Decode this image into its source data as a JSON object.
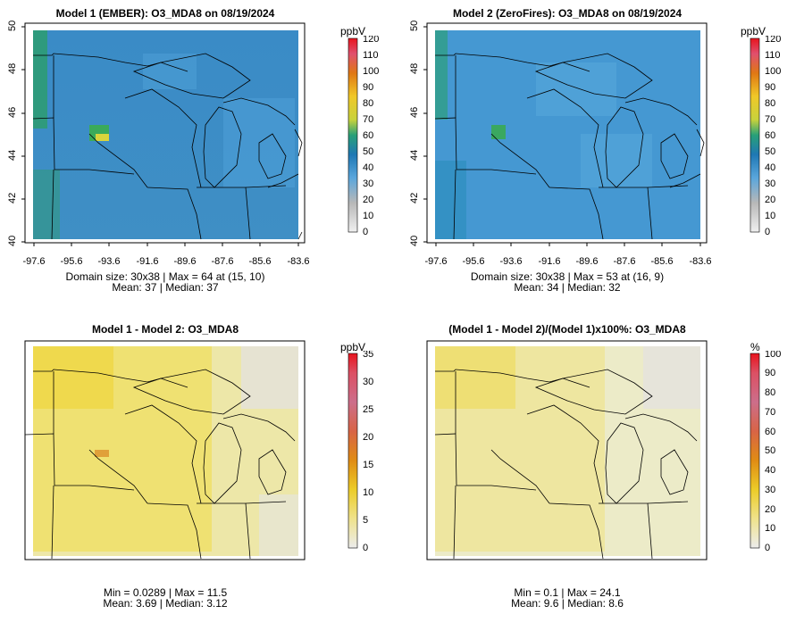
{
  "panels": [
    {
      "id": "p1",
      "title": "Model 1 (EMBER): O3_MDA8 on 08/19/2024",
      "unit": "ppbV",
      "legend_ticks": [
        "120",
        "110",
        "100",
        "90",
        "80",
        "70",
        "60",
        "50",
        "40",
        "30",
        "20",
        "10",
        "0"
      ],
      "stats_line1": "Domain size: 30x38 | Max = 64 at (15, 10)",
      "stats_line2": "Mean: 37 |  Median: 37",
      "x_ticks": [
        "-97.6",
        "-95.6",
        "-93.6",
        "-91.6",
        "-89.6",
        "-87.6",
        "-85.6",
        "-83.6"
      ],
      "y_ticks": [
        "40",
        "42",
        "44",
        "46",
        "48",
        "50"
      ]
    },
    {
      "id": "p2",
      "title": "Model 2 (ZeroFires): O3_MDA8 on 08/19/2024",
      "unit": "ppbV",
      "legend_ticks": [
        "120",
        "110",
        "100",
        "90",
        "80",
        "70",
        "60",
        "50",
        "40",
        "30",
        "20",
        "10",
        "0"
      ],
      "stats_line1": "Domain size: 30x38 | Max = 53 at (16, 9)",
      "stats_line2": "Mean: 34 |  Median: 32",
      "x_ticks": [
        "-97.6",
        "-95.6",
        "-93.6",
        "-91.6",
        "-89.6",
        "-87.6",
        "-85.6",
        "-83.6"
      ],
      "y_ticks": [
        "40",
        "42",
        "44",
        "46",
        "48",
        "50"
      ]
    },
    {
      "id": "p3",
      "title": "Model 1 - Model 2: O3_MDA8",
      "unit": "ppbV",
      "legend_ticks": [
        "35",
        "30",
        "25",
        "20",
        "15",
        "10",
        "5",
        "0"
      ],
      "stats_line1": "Min = 0.0289 | Max = 11.5",
      "stats_line2": "Mean: 3.69 |  Median: 3.12"
    },
    {
      "id": "p4",
      "title": "(Model 1 - Model 2)/(Model 1)x100%: O3_MDA8",
      "unit": "%",
      "legend_ticks": [
        "100",
        "90",
        "80",
        "70",
        "60",
        "50",
        "40",
        "30",
        "20",
        "10",
        "0"
      ],
      "stats_line1": "Min = 0.1 | Max = 24.1",
      "stats_line2": "Mean: 9.6 |  Median: 8.6"
    }
  ],
  "colors": {
    "p1_base": "#3a8cc8",
    "p2_base": "#4a9ad4",
    "p3_base": "#ede8b0",
    "p4_base": "#ecebc8",
    "warm_yellow": "#efdc3c"
  }
}
